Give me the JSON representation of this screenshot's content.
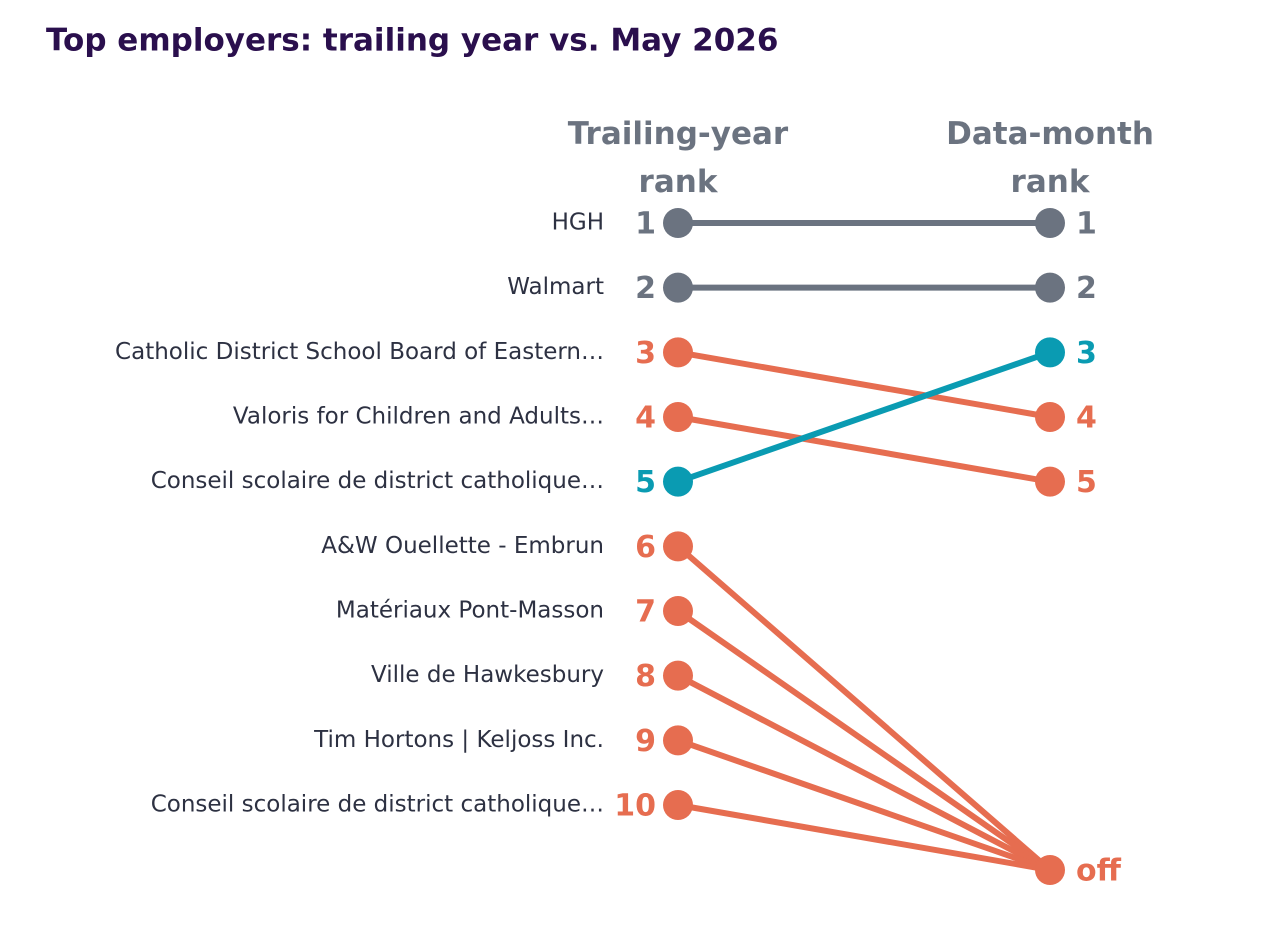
{
  "chart_data": {
    "type": "slope",
    "title": "Top employers: trailing year vs. May 2026",
    "categories": [
      "HGH",
      "Walmart",
      "Catholic District School Board of Eastern…",
      "Valoris for Children and Adults…",
      "Conseil scolaire de district catholique…",
      "A&W Ouellette - Embrun",
      "Matériaux Pont-Masson",
      "Ville de Hawkesbury",
      "Tim Hortons | Keljoss Inc.",
      "Conseil scolaire de district catholique…"
    ],
    "series": [
      {
        "name": "Trailing-year rank",
        "values": [
          1,
          2,
          3,
          4,
          5,
          6,
          7,
          8,
          9,
          10
        ]
      },
      {
        "name": "Data-month rank",
        "values": [
          1,
          2,
          4,
          5,
          3,
          null,
          null,
          null,
          null,
          null
        ]
      }
    ],
    "colors": [
      "#6b7380",
      "#6b7380",
      "#e66d50",
      "#e66d50",
      "#0a9bb2",
      "#e66d50",
      "#e66d50",
      "#e66d50",
      "#e66d50",
      "#e66d50"
    ],
    "off_label": "off",
    "ylim": [
      1,
      10
    ]
  }
}
